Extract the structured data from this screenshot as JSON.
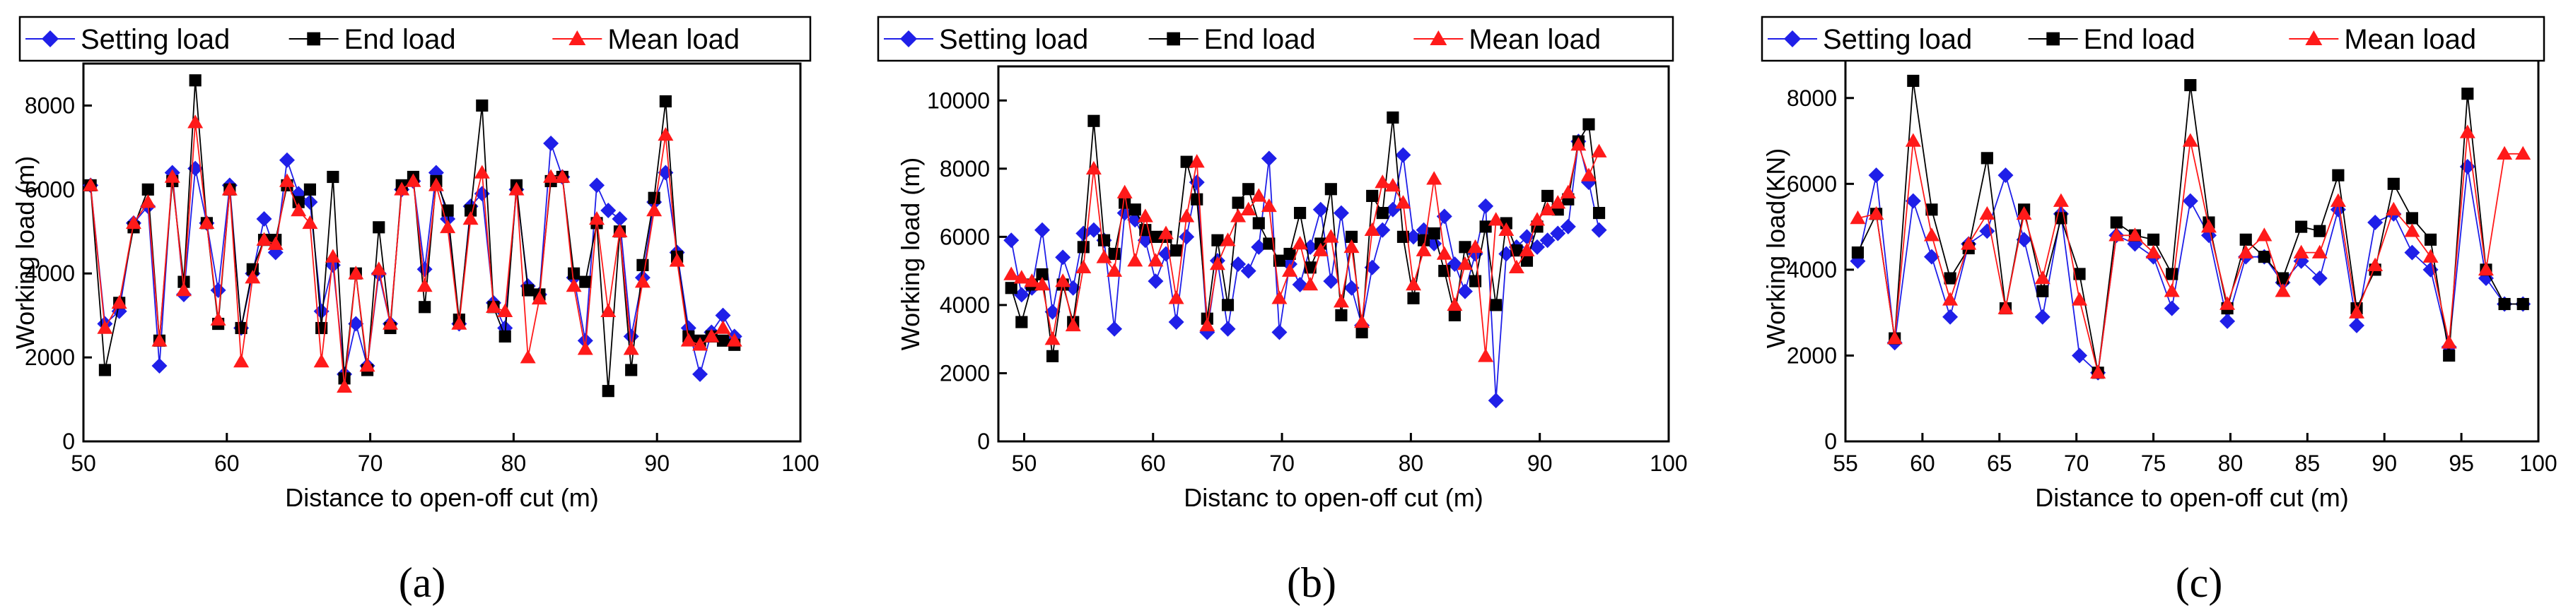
{
  "colors": {
    "setting": "#1f1fe8",
    "end": "#000000",
    "mean": "#ff1a1a",
    "axis": "#000000"
  },
  "chart_data": [
    {
      "type": "line",
      "panel_label": "(a)",
      "xlabel": "Distance to open-off cut (m)",
      "ylabel": "Working load (m)",
      "xlim": [
        50,
        100
      ],
      "ylim": [
        0,
        9000
      ],
      "xticks": [
        50,
        60,
        70,
        80,
        90,
        100
      ],
      "yticks": [
        0,
        2000,
        4000,
        6000,
        8000
      ],
      "legend": {
        "position": "top",
        "entries": [
          "Setting load",
          "End load",
          "Mean load"
        ]
      },
      "x": [
        50.5,
        51.5,
        52.5,
        53.5,
        54.5,
        55.3,
        56.2,
        57.0,
        57.8,
        58.6,
        59.4,
        60.2,
        61.0,
        61.8,
        62.6,
        63.4,
        64.2,
        65.0,
        65.8,
        66.6,
        67.4,
        68.2,
        69.0,
        69.8,
        70.6,
        71.4,
        72.2,
        73.0,
        73.8,
        74.6,
        75.4,
        76.2,
        77.0,
        77.8,
        78.6,
        79.4,
        80.2,
        81.0,
        81.8,
        82.6,
        83.4,
        84.2,
        85.0,
        85.8,
        86.6,
        87.4,
        88.2,
        89.0,
        89.8,
        90.6,
        91.4,
        92.2,
        93.0,
        93.8,
        94.6,
        95.4
      ],
      "series": [
        {
          "name": "Setting load",
          "marker": "diamond",
          "values": [
            6100,
            2800,
            3100,
            5200,
            5600,
            1800,
            6400,
            3500,
            6500,
            5200,
            3600,
            6100,
            2700,
            4000,
            5300,
            4500,
            6700,
            5900,
            5700,
            3100,
            4200,
            1600,
            2800,
            1800,
            4000,
            2800,
            6000,
            6200,
            4100,
            6400,
            5300,
            2800,
            5600,
            5900,
            3300,
            2700,
            6000,
            3700,
            3500,
            7100,
            6300,
            3900,
            2400,
            6100,
            5500,
            5300,
            2500,
            3900,
            5700,
            6400,
            4500,
            2700,
            1600,
            2600,
            3000,
            2500
          ]
        },
        {
          "name": "End load",
          "marker": "square",
          "values": [
            6100,
            1700,
            3300,
            5100,
            6000,
            2400,
            6200,
            3800,
            8600,
            5200,
            2800,
            6000,
            2700,
            4100,
            4800,
            4800,
            6100,
            5700,
            6000,
            2700,
            6300,
            1500,
            4000,
            1700,
            5100,
            2700,
            6100,
            6300,
            3200,
            6200,
            5500,
            2900,
            5500,
            8000,
            3200,
            2500,
            6100,
            3600,
            3500,
            6200,
            6300,
            4000,
            3800,
            5200,
            1200,
            5000,
            1700,
            4200,
            5800,
            8100,
            4400,
            2500,
            2400,
            2500,
            2400,
            2300
          ]
        },
        {
          "name": "Mean load",
          "marker": "triangle",
          "values": [
            6100,
            2700,
            3300,
            5200,
            5700,
            2400,
            6300,
            3600,
            7600,
            5200,
            2900,
            6000,
            1900,
            3900,
            4800,
            4700,
            6200,
            5500,
            5200,
            1900,
            4400,
            1300,
            4000,
            1800,
            4100,
            2800,
            6000,
            6200,
            3700,
            6100,
            5100,
            2800,
            5300,
            6400,
            3200,
            3100,
            6000,
            2000,
            3400,
            6300,
            6300,
            3700,
            2200,
            5300,
            3100,
            5000,
            2200,
            3800,
            5500,
            7300,
            4300,
            2400,
            2300,
            2500,
            2700,
            2400
          ]
        }
      ]
    },
    {
      "type": "line",
      "panel_label": "(b)",
      "xlabel": "Distanc to open-off cut (m)",
      "ylabel": "Working load (m)",
      "xlim": [
        48,
        100
      ],
      "ylim": [
        0,
        11000
      ],
      "xticks": [
        50,
        60,
        70,
        80,
        90,
        100
      ],
      "yticks": [
        0,
        2000,
        4000,
        6000,
        8000,
        10000
      ],
      "legend": {
        "position": "top",
        "entries": [
          "Setting load",
          "End load",
          "Mean load"
        ]
      },
      "x": [
        49.0,
        49.8,
        50.6,
        51.4,
        52.2,
        53.0,
        53.8,
        54.6,
        55.4,
        56.2,
        57.0,
        57.8,
        58.6,
        59.4,
        60.2,
        61.0,
        61.8,
        62.6,
        63.4,
        64.2,
        65.0,
        65.8,
        66.6,
        67.4,
        68.2,
        69.0,
        69.8,
        70.6,
        71.4,
        72.2,
        73.0,
        73.8,
        74.6,
        75.4,
        76.2,
        77.0,
        77.8,
        78.6,
        79.4,
        80.2,
        81.0,
        81.8,
        82.6,
        83.4,
        84.2,
        85.0,
        85.8,
        86.6,
        87.4,
        88.2,
        89.0,
        89.8,
        90.6,
        91.4,
        92.2,
        93.0,
        93.8,
        94.6
      ],
      "series": [
        {
          "name": "Setting load",
          "marker": "diamond",
          "values": [
            5900,
            4300,
            4500,
            6200,
            3800,
            5400,
            4500,
            6100,
            6200,
            5900,
            3300,
            6700,
            6500,
            5900,
            4700,
            5500,
            3500,
            6000,
            7600,
            3200,
            5300,
            3300,
            5200,
            5000,
            5700,
            8300,
            3200,
            5200,
            4600,
            5700,
            6800,
            4700,
            6700,
            4500,
            3400,
            5100,
            6200,
            6800,
            8400,
            6000,
            6200,
            5800,
            6600,
            5200,
            4400,
            5500,
            6900,
            1200,
            5500,
            5700,
            6000,
            5700,
            5900,
            6100,
            6300,
            8800,
            7600,
            6200
          ]
        },
        {
          "name": "End load",
          "marker": "square",
          "values": [
            4500,
            3500,
            4600,
            4900,
            2500,
            4600,
            3500,
            5700,
            9400,
            5900,
            5500,
            7000,
            6800,
            6200,
            6000,
            6000,
            5600,
            8200,
            7100,
            3600,
            5900,
            4000,
            7000,
            7400,
            6400,
            5800,
            5300,
            5500,
            6700,
            5100,
            5800,
            7400,
            3700,
            6000,
            3200,
            7200,
            6700,
            9500,
            6000,
            4200,
            5900,
            6100,
            5000,
            3700,
            5700,
            4700,
            6300,
            4000,
            6400,
            5600,
            5300,
            6300,
            7200,
            6800,
            7100,
            8800,
            9300,
            6700
          ]
        },
        {
          "name": "Mean load",
          "marker": "triangle",
          "values": [
            4900,
            4800,
            4700,
            4600,
            3000,
            4700,
            3400,
            5100,
            8000,
            5400,
            5000,
            7300,
            5300,
            6600,
            5300,
            6100,
            4200,
            6600,
            8200,
            3400,
            5200,
            5900,
            6600,
            6800,
            7200,
            6900,
            4200,
            5000,
            5800,
            4600,
            5600,
            6000,
            4100,
            5700,
            3500,
            6200,
            7600,
            7500,
            7000,
            4600,
            5600,
            7700,
            5500,
            4000,
            5200,
            5700,
            2500,
            6500,
            6200,
            5100,
            5600,
            6500,
            6800,
            7000,
            7300,
            8700,
            7800,
            8500
          ]
        }
      ]
    },
    {
      "type": "line",
      "panel_label": "(c)",
      "xlabel": "Distance to open-off cut (m)",
      "ylabel": "Working load(KN)",
      "xlim": [
        55,
        100
      ],
      "ylim": [
        0,
        9000
      ],
      "xticks": [
        55,
        60,
        65,
        70,
        75,
        80,
        85,
        90,
        95,
        100
      ],
      "yticks": [
        0,
        2000,
        4000,
        6000,
        8000
      ],
      "legend": {
        "position": "top",
        "entries": [
          "Setting load",
          "End load",
          "Mean load"
        ]
      },
      "x": [
        55.8,
        57.0,
        58.2,
        59.4,
        60.6,
        61.8,
        63.0,
        64.2,
        65.4,
        66.6,
        67.8,
        69.0,
        70.2,
        71.4,
        72.6,
        73.8,
        75.0,
        76.2,
        77.4,
        78.6,
        79.8,
        81.0,
        82.2,
        83.4,
        84.6,
        85.8,
        87.0,
        88.2,
        89.4,
        90.6,
        91.8,
        93.0,
        94.2,
        95.4,
        96.6,
        97.8,
        99.0
      ],
      "series": [
        {
          "name": "Setting load",
          "marker": "diamond",
          "values": [
            4200,
            6200,
            2300,
            5600,
            4300,
            2900,
            4600,
            4900,
            6200,
            4700,
            2900,
            5300,
            2000,
            1600,
            4800,
            4600,
            4300,
            3100,
            5600,
            4800,
            2800,
            4300,
            4300,
            3700,
            4200,
            3800,
            5400,
            2700,
            5100,
            5300,
            4400,
            4000,
            2200,
            6400,
            3800,
            3200,
            3200
          ]
        },
        {
          "name": "End load",
          "marker": "square",
          "values": [
            4400,
            5300,
            2400,
            8400,
            5400,
            3800,
            4500,
            6600,
            3100,
            5400,
            3500,
            5200,
            3900,
            1600,
            5100,
            4800,
            4700,
            3900,
            8300,
            5100,
            3100,
            4700,
            4300,
            3800,
            5000,
            4900,
            6200,
            3100,
            4000,
            6000,
            5200,
            4700,
            2000,
            8100,
            4000,
            3200,
            3200
          ]
        },
        {
          "name": "Mean load",
          "marker": "triangle",
          "values": [
            5200,
            5300,
            2400,
            7000,
            4800,
            3300,
            4600,
            5300,
            3100,
            5300,
            3800,
            5600,
            3300,
            1600,
            4800,
            4800,
            4400,
            3500,
            7000,
            5000,
            3200,
            4400,
            4800,
            3500,
            4400,
            4400,
            5600,
            3000,
            4100,
            5400,
            4900,
            4300,
            2300,
            7200,
            4000,
            6700,
            6700
          ]
        }
      ]
    }
  ]
}
